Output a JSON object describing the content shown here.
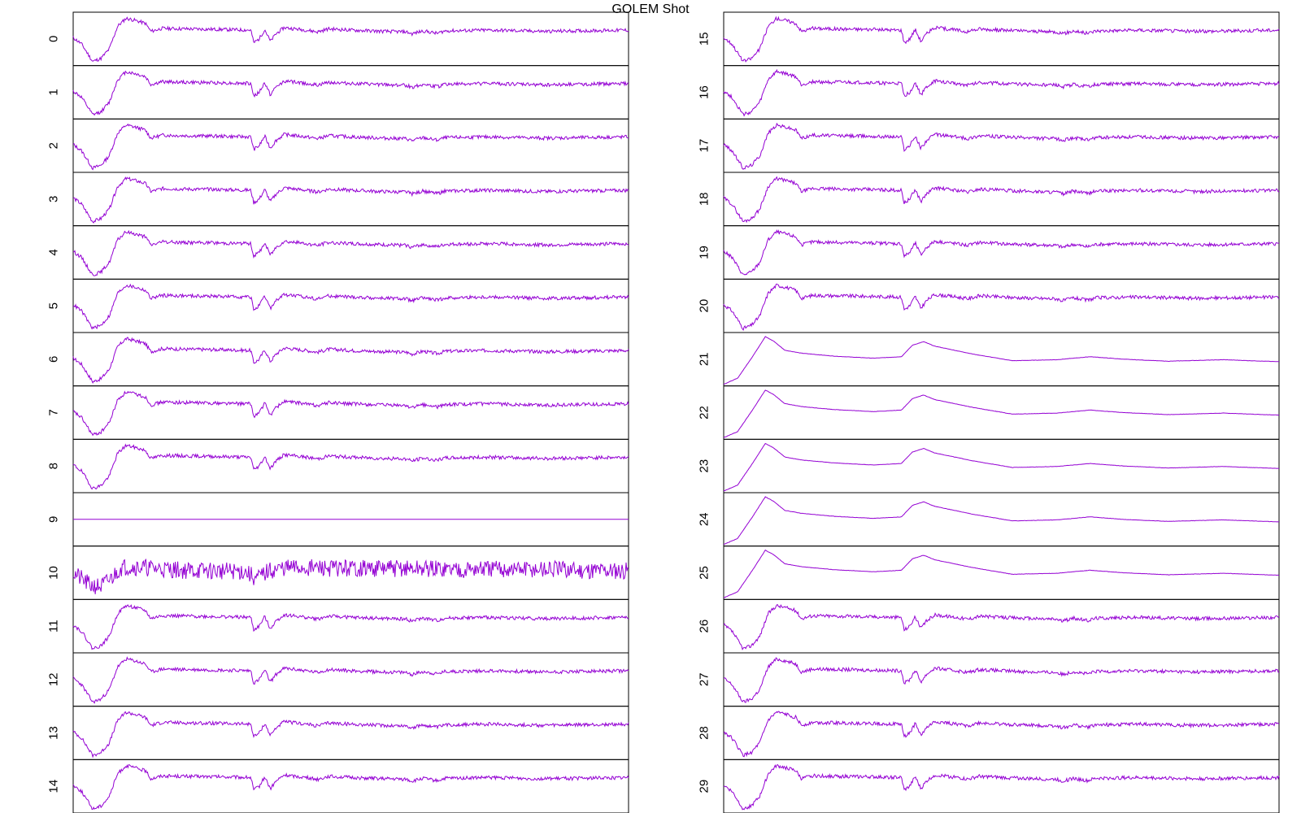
{
  "title": "GOLEM Shot",
  "colors": {
    "trace": "#9400d3",
    "frame": "#000000",
    "background": "#ffffff"
  },
  "chart_data": {
    "type": "line",
    "title": "GOLEM Shot",
    "xlabel": "",
    "ylabel": "",
    "layout_description": "30 stacked line panels in two columns of 15, panels sharing a time axis without tick labels",
    "channels": [
      {
        "label": "0",
        "shape": "noisy-signal"
      },
      {
        "label": "1",
        "shape": "noisy-signal"
      },
      {
        "label": "2",
        "shape": "noisy-signal"
      },
      {
        "label": "3",
        "shape": "noisy-signal"
      },
      {
        "label": "4",
        "shape": "noisy-signal"
      },
      {
        "label": "5",
        "shape": "noisy-signal"
      },
      {
        "label": "6",
        "shape": "noisy-signal"
      },
      {
        "label": "7",
        "shape": "noisy-signal"
      },
      {
        "label": "8",
        "shape": "noisy-signal"
      },
      {
        "label": "9",
        "shape": "flat"
      },
      {
        "label": "10",
        "shape": "very-noisy-signal"
      },
      {
        "label": "11",
        "shape": "noisy-signal"
      },
      {
        "label": "12",
        "shape": "noisy-signal"
      },
      {
        "label": "13",
        "shape": "noisy-signal"
      },
      {
        "label": "14",
        "shape": "noisy-signal"
      },
      {
        "label": "15",
        "shape": "noisy-signal"
      },
      {
        "label": "16",
        "shape": "noisy-signal"
      },
      {
        "label": "17",
        "shape": "noisy-signal"
      },
      {
        "label": "18",
        "shape": "noisy-signal"
      },
      {
        "label": "19",
        "shape": "noisy-signal"
      },
      {
        "label": "20",
        "shape": "noisy-signal"
      },
      {
        "label": "21",
        "shape": "smooth-signal"
      },
      {
        "label": "22",
        "shape": "smooth-signal"
      },
      {
        "label": "23",
        "shape": "smooth-signal"
      },
      {
        "label": "24",
        "shape": "smooth-signal"
      },
      {
        "label": "25",
        "shape": "smooth-signal"
      },
      {
        "label": "26",
        "shape": "noisy-signal"
      },
      {
        "label": "27",
        "shape": "noisy-signal"
      },
      {
        "label": "28",
        "shape": "noisy-signal"
      },
      {
        "label": "29",
        "shape": "noisy-signal"
      }
    ],
    "shapes": {
      "noisy-signal": {
        "ylim": [
          -1,
          1
        ],
        "noise": 0.07,
        "points": [
          [
            0.0,
            0.05
          ],
          [
            0.015,
            -0.2
          ],
          [
            0.025,
            -0.55
          ],
          [
            0.035,
            -0.9
          ],
          [
            0.05,
            -0.78
          ],
          [
            0.065,
            -0.4
          ],
          [
            0.08,
            0.5
          ],
          [
            0.095,
            0.82
          ],
          [
            0.11,
            0.75
          ],
          [
            0.13,
            0.62
          ],
          [
            0.14,
            0.3
          ],
          [
            0.16,
            0.42
          ],
          [
            0.2,
            0.4
          ],
          [
            0.26,
            0.38
          ],
          [
            0.32,
            0.35
          ],
          [
            0.325,
            -0.15
          ],
          [
            0.335,
            0.0
          ],
          [
            0.345,
            0.38
          ],
          [
            0.355,
            -0.1
          ],
          [
            0.365,
            0.2
          ],
          [
            0.38,
            0.45
          ],
          [
            0.42,
            0.35
          ],
          [
            0.44,
            0.28
          ],
          [
            0.46,
            0.4
          ],
          [
            0.5,
            0.35
          ],
          [
            0.56,
            0.3
          ],
          [
            0.6,
            0.28
          ],
          [
            0.61,
            0.2
          ],
          [
            0.63,
            0.32
          ],
          [
            0.655,
            0.22
          ],
          [
            0.67,
            0.32
          ],
          [
            0.75,
            0.35
          ],
          [
            0.85,
            0.3
          ],
          [
            1.0,
            0.35
          ]
        ]
      },
      "very-noisy-signal": {
        "ylim": [
          -1,
          1
        ],
        "noise": 0.35,
        "points": [
          [
            0.0,
            0.0
          ],
          [
            0.03,
            -0.5
          ],
          [
            0.05,
            -0.55
          ],
          [
            0.07,
            -0.2
          ],
          [
            0.085,
            0.2
          ],
          [
            0.1,
            0.25
          ],
          [
            0.2,
            0.1
          ],
          [
            0.31,
            0.05
          ],
          [
            0.33,
            -0.25
          ],
          [
            0.35,
            0.05
          ],
          [
            0.38,
            0.2
          ],
          [
            1.0,
            0.1
          ]
        ]
      },
      "flat": {
        "ylim": [
          -1,
          1
        ],
        "noise": 0,
        "points": [
          [
            0.0,
            0.0
          ],
          [
            1.0,
            0.0
          ]
        ]
      },
      "smooth-signal": {
        "ylim": [
          0,
          1
        ],
        "noise": 0.003,
        "points": [
          [
            0.0,
            0.0
          ],
          [
            0.025,
            0.12
          ],
          [
            0.05,
            0.52
          ],
          [
            0.075,
            0.95
          ],
          [
            0.09,
            0.86
          ],
          [
            0.11,
            0.68
          ],
          [
            0.14,
            0.62
          ],
          [
            0.2,
            0.56
          ],
          [
            0.27,
            0.52
          ],
          [
            0.32,
            0.55
          ],
          [
            0.34,
            0.78
          ],
          [
            0.36,
            0.85
          ],
          [
            0.38,
            0.76
          ],
          [
            0.45,
            0.6
          ],
          [
            0.52,
            0.47
          ],
          [
            0.6,
            0.49
          ],
          [
            0.66,
            0.55
          ],
          [
            0.72,
            0.5
          ],
          [
            0.8,
            0.46
          ],
          [
            0.9,
            0.49
          ],
          [
            1.0,
            0.45
          ]
        ]
      }
    }
  }
}
